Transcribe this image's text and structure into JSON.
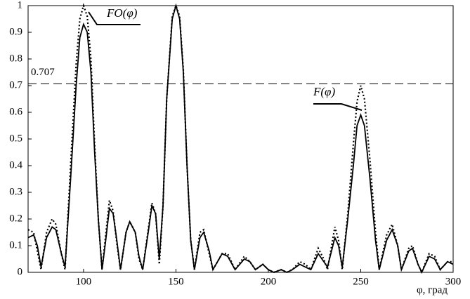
{
  "chart_data": {
    "type": "line",
    "xlabel": "φ, град",
    "x": [
      70,
      73,
      75,
      77,
      80,
      83,
      85,
      88,
      90,
      93,
      96,
      98,
      100,
      102,
      104,
      106,
      108,
      110,
      112,
      114,
      116,
      118,
      120,
      123,
      125,
      128,
      130,
      132,
      135,
      137,
      139,
      141,
      143,
      145,
      148,
      150,
      152,
      154,
      156,
      158,
      160,
      163,
      165,
      168,
      170,
      175,
      178,
      182,
      187,
      190,
      193,
      197,
      200,
      203,
      207,
      210,
      213,
      217,
      220,
      223,
      227,
      230,
      232,
      236,
      238,
      240,
      243,
      246,
      248,
      250,
      252,
      255,
      258,
      260,
      264,
      267,
      270,
      272,
      276,
      278,
      281,
      283,
      287,
      290,
      293,
      297,
      300
    ],
    "series": [
      {
        "name": "FO(φ)",
        "color": "#000000",
        "dash": "dotted",
        "values": [
          0.16,
          0.15,
          0.08,
          0.01,
          0.15,
          0.2,
          0.18,
          0.07,
          0.01,
          0.4,
          0.78,
          0.95,
          1.0,
          0.96,
          0.8,
          0.48,
          0.2,
          0.01,
          0.14,
          0.27,
          0.23,
          0.11,
          0.01,
          0.15,
          0.19,
          0.15,
          0.05,
          0.01,
          0.16,
          0.26,
          0.22,
          0.03,
          0.25,
          0.65,
          0.96,
          1.0,
          0.96,
          0.76,
          0.4,
          0.12,
          0.01,
          0.15,
          0.16,
          0.07,
          0.01,
          0.07,
          0.07,
          0.01,
          0.06,
          0.04,
          0.01,
          0.03,
          0.01,
          0.0,
          0.01,
          0.0,
          0.01,
          0.04,
          0.03,
          0.01,
          0.09,
          0.05,
          0.01,
          0.17,
          0.12,
          0.01,
          0.22,
          0.48,
          0.64,
          0.7,
          0.65,
          0.42,
          0.15,
          0.01,
          0.14,
          0.18,
          0.1,
          0.01,
          0.09,
          0.1,
          0.03,
          0.0,
          0.07,
          0.06,
          0.01,
          0.04,
          0.04
        ]
      },
      {
        "name": "F(φ)",
        "color": "#000000",
        "dash": "solid",
        "values": [
          0.13,
          0.14,
          0.1,
          0.02,
          0.13,
          0.17,
          0.16,
          0.07,
          0.02,
          0.35,
          0.7,
          0.88,
          0.93,
          0.9,
          0.75,
          0.45,
          0.2,
          0.01,
          0.12,
          0.24,
          0.22,
          0.12,
          0.01,
          0.15,
          0.19,
          0.15,
          0.06,
          0.01,
          0.15,
          0.25,
          0.22,
          0.05,
          0.25,
          0.65,
          0.95,
          1.0,
          0.95,
          0.75,
          0.4,
          0.12,
          0.01,
          0.13,
          0.15,
          0.08,
          0.01,
          0.07,
          0.06,
          0.01,
          0.05,
          0.04,
          0.01,
          0.03,
          0.01,
          0.0,
          0.01,
          0.0,
          0.01,
          0.03,
          0.02,
          0.01,
          0.07,
          0.04,
          0.02,
          0.13,
          0.1,
          0.02,
          0.2,
          0.4,
          0.55,
          0.59,
          0.55,
          0.35,
          0.12,
          0.01,
          0.12,
          0.16,
          0.1,
          0.01,
          0.08,
          0.09,
          0.03,
          0.0,
          0.06,
          0.05,
          0.01,
          0.04,
          0.03
        ]
      }
    ],
    "hline": 0.707,
    "xlim": [
      70,
      300
    ],
    "xticks": [
      100,
      150,
      200,
      250,
      300
    ],
    "ylim": [
      0,
      1
    ],
    "yticks": [
      0,
      0.1,
      0.2,
      0.3,
      0.4,
      0.5,
      0.6,
      0.7,
      0.8,
      0.9,
      1
    ],
    "grid": false
  }
}
